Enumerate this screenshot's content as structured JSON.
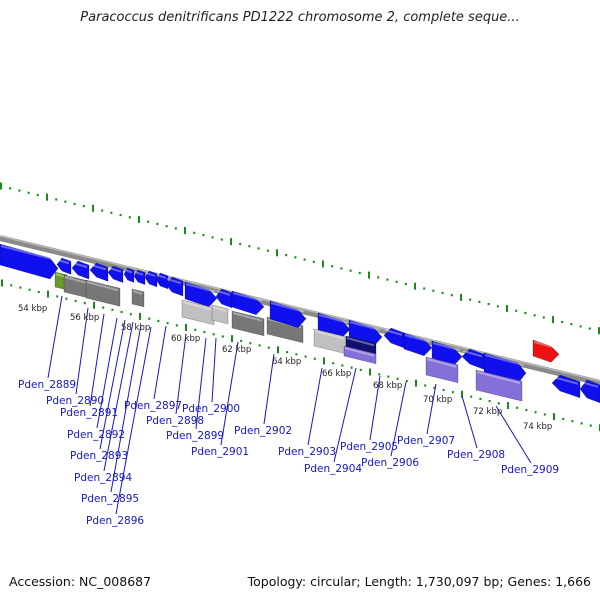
{
  "header": {
    "title": "Paracoccus denitrificans PD1222 chromosome 2, complete seque..."
  },
  "footer": {
    "accession": "Accession: NC_008687",
    "summary": "Topology: circular; Length: 1,730,097 bp; Genes: 1,666"
  },
  "colors": {
    "backbone": "#8a8a8a",
    "tick": "#1a8a1a",
    "gene_blue": "#1010ee",
    "gene_gray": "#777777",
    "gene_light_gray": "#c0c0c0",
    "gene_lavender": "#8470d8",
    "gene_navy": "#101070",
    "gene_olive": "#6a9a2a",
    "gene_red": "#ee1111",
    "label": "#1616c8"
  },
  "scale": {
    "ticks_kbp": [
      "54 kbp",
      "56 kbp",
      "58 kbp",
      "60 kbp",
      "62 kbp",
      "64 kbp",
      "66 kbp",
      "68 kbp",
      "70 kbp",
      "72 kbp",
      "74 kbp"
    ]
  },
  "gene_labels": [
    "Pden_2889",
    "Pden_2890",
    "Pden_2891",
    "Pden_2892",
    "Pden_2893",
    "Pden_2894",
    "Pden_2895",
    "Pden_2896",
    "Pden_2897",
    "Pden_2898",
    "Pden_2899",
    "Pden_2900",
    "Pden_2901",
    "Pden_2902",
    "Pden_2903",
    "Pden_2904",
    "Pden_2905",
    "Pden_2906",
    "Pden_2907",
    "Pden_2908",
    "Pden_2909"
  ]
}
